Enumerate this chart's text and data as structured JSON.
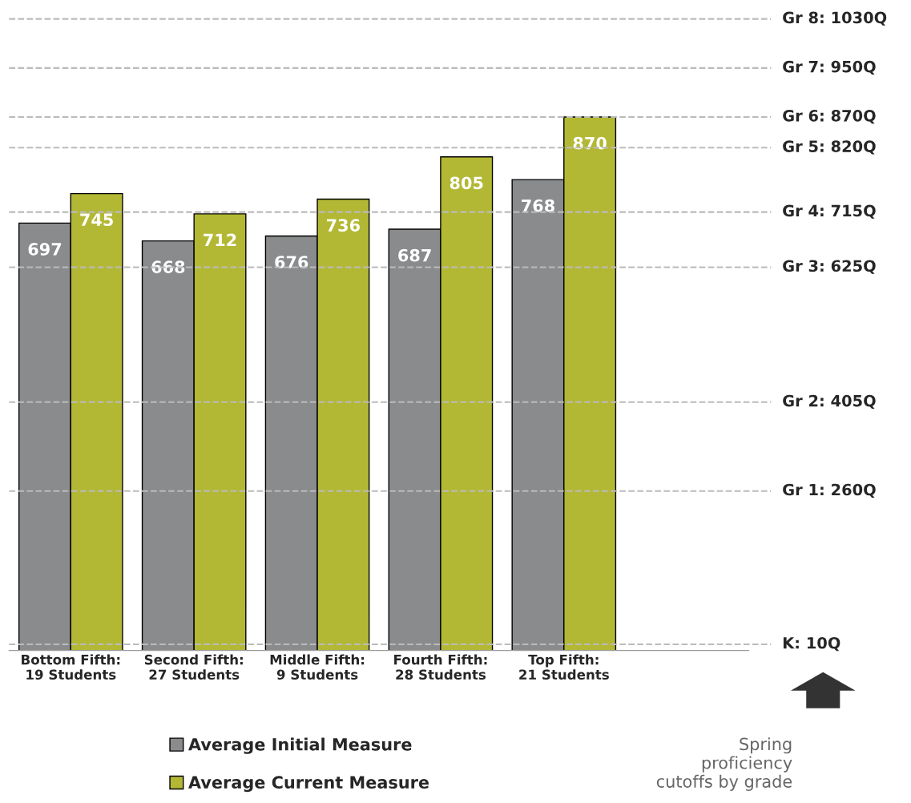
{
  "chart_data": {
    "type": "bar",
    "categories": [
      "Bottom Fifth:\n19 Students",
      "Second Fifth:\n27 Students",
      "Middle Fifth:\n9 Students",
      "Fourth Fifth:\n28 Students",
      "Top Fifth:\n21 Students",
      null
    ],
    "series": [
      {
        "name": "Average Initial Measure",
        "color": "#898b8c",
        "values": [
          697,
          668,
          676,
          687,
          768,
          null
        ]
      },
      {
        "name": "Average Current Measure",
        "color": "#b3b834",
        "values": [
          745,
          712,
          736,
          805,
          870,
          null
        ]
      }
    ],
    "tick_labels": "x",
    "data_labels": true,
    "legend": "bottom",
    "grid": false,
    "ref_lines": [
      {
        "axis": "y",
        "value": 1030,
        "label": "Gr 8: 1030Q",
        "color": "#bbbbbb",
        "line_style": "dashed"
      },
      {
        "axis": "y",
        "value": 950,
        "label": "Gr 7: 950Q",
        "color": "#bbbbbb",
        "line_style": "dashed"
      },
      {
        "axis": "y",
        "value": 870,
        "label": "Gr 6: 870Q",
        "color": "#bbbbbb",
        "line_style": "dashed"
      },
      {
        "axis": "y",
        "value": 820,
        "label": "Gr 5: 820Q",
        "color": "#bbbbbb",
        "line_style": "dashed"
      },
      {
        "axis": "y",
        "value": 715,
        "label": "Gr 4: 715Q",
        "color": "#bbbbbb",
        "line_style": "dashed"
      },
      {
        "axis": "y",
        "value": 625,
        "label": "Gr 3: 625Q",
        "color": "#bbbbbb",
        "line_style": "dashed"
      },
      {
        "axis": "y",
        "value": 405,
        "label": "Gr 2: 405Q",
        "color": "#bbbbbb",
        "line_style": "dashed"
      },
      {
        "axis": "y",
        "value": 260,
        "label": "Gr 1: 260Q",
        "color": "#bbbbbb",
        "line_style": "dashed"
      },
      {
        "axis": "y",
        "value": 10,
        "label": "K: 10Q",
        "color": "#bbbbbb",
        "line_style": "dashed"
      }
    ],
    "annotations": [
      "Spring\nproficiency\ncutoffs by grade"
    ]
  }
}
